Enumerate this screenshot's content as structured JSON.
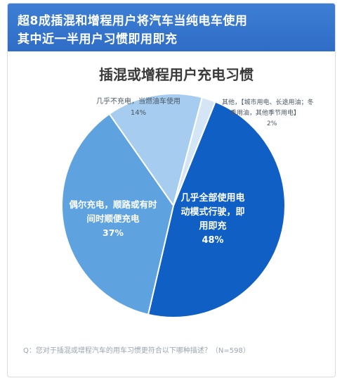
{
  "header": {
    "line1": "超8成插混和增程用户将汽车当纯电车使用",
    "line2": "其中近一半用户习惯即用即充"
  },
  "footnote": "Q：您对于插混或增程汽车的用车习惯更符合以下哪种描述？（N=598）",
  "colors": {
    "banner": "#3373cc",
    "slices": [
      "#0f5fc4",
      "#5ea3e0",
      "#a6cdef",
      "#d4e6f5"
    ]
  },
  "chart_data": {
    "type": "pie",
    "title": "插混或增程用户充电习惯",
    "slices": [
      {
        "label_lines": [
          "几乎全部使用电",
          "动模式行驶，即",
          "用即充"
        ],
        "value": 48,
        "value_label": "48%"
      },
      {
        "label_lines": [
          "偶尔充电，顺路或有时",
          "间时顺便充电"
        ],
        "value": 37,
        "value_label": "37%"
      },
      {
        "label_lines": [
          "几乎不充电，当燃油车使用"
        ],
        "value": 14,
        "value_label": "14%"
      },
      {
        "label_lines": [
          "其他，【城市用电、长途用油；冬",
          "季用油，其他季节用电】"
        ],
        "value": 2,
        "value_label": "2%"
      }
    ]
  }
}
